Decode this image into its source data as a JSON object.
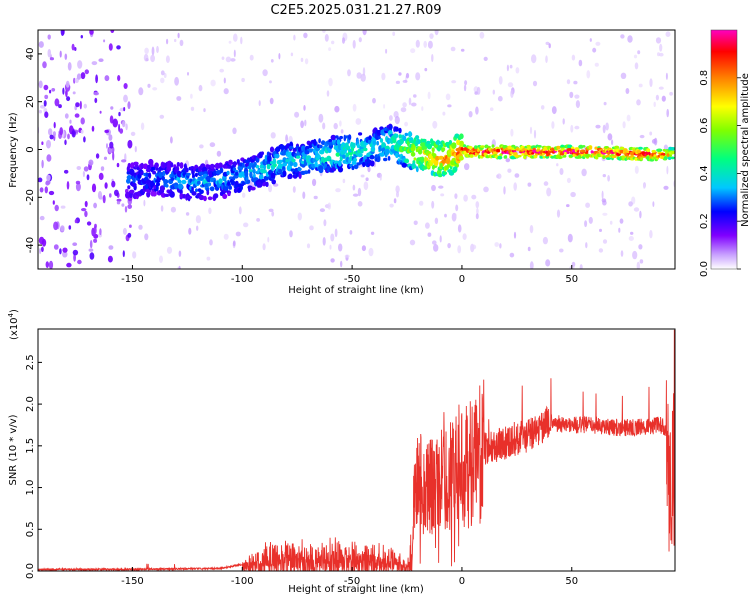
{
  "title": "C2E5.2025.031.21.27.R09",
  "chart_data": [
    {
      "type": "heatmap",
      "xlabel": "Height of straight line (km)",
      "ylabel": "Frequency (Hz)",
      "xlim": [
        -193,
        97
      ],
      "ylim": [
        -50,
        50
      ],
      "xticks": [
        -150,
        -100,
        -50,
        0,
        50
      ],
      "yticks": [
        -40,
        -20,
        0,
        20,
        40
      ],
      "colorbar": {
        "label": "Normalized spectral amplitude",
        "range": [
          0,
          1
        ],
        "ticks": [
          "0.0",
          "0.2",
          "0.4",
          "0.6",
          "0.8"
        ],
        "tick_values": [
          0.0,
          0.2,
          0.4,
          0.6,
          0.8
        ],
        "colormap": [
          "#ffffff",
          "#c8a0ff",
          "#8000ff",
          "#0000ff",
          "#00c8ff",
          "#00ff80",
          "#80ff00",
          "#ffff00",
          "#ff8000",
          "#ff0000",
          "#ff00c0"
        ]
      },
      "ridge": {
        "x": [
          -150,
          -140,
          -130,
          -120,
          -110,
          -100,
          -90,
          -80,
          -70,
          -60,
          -50,
          -40,
          -33,
          -30,
          -25,
          -20,
          -15,
          -10,
          -5,
          0,
          5,
          20,
          40,
          60,
          80,
          90,
          96
        ],
        "y": [
          -13,
          -12,
          -13,
          -14,
          -13,
          -11,
          -8,
          -5,
          -4,
          -2,
          -1,
          1,
          3,
          2,
          0,
          -2,
          -3,
          -4,
          -3,
          0,
          -1,
          -1,
          -1,
          -1,
          -2,
          -2,
          -2
        ],
        "amplitude": [
          0.3,
          0.3,
          0.35,
          0.35,
          0.35,
          0.35,
          0.4,
          0.4,
          0.4,
          0.45,
          0.45,
          0.4,
          0.45,
          0.5,
          0.6,
          0.7,
          0.8,
          0.8,
          0.85,
          0.9,
          1.0,
          1.0,
          1.0,
          1.0,
          1.0,
          0.9,
          0.7
        ]
      }
    },
    {
      "type": "line",
      "xlabel": "Height of straight line (km)",
      "ylabel": "SNR (10 * v/v)",
      "scale_label": "(x10",
      "scale_exponent": "4",
      "scale_suffix": ")",
      "xlim": [
        -193,
        97
      ],
      "ylim": [
        0,
        2.9
      ],
      "xticks": [
        -150,
        -100,
        -50,
        0,
        50
      ],
      "yticks": [
        "0.0",
        "0.5",
        "1.0",
        "1.5",
        "2.0",
        "2.5"
      ],
      "ytick_values": [
        0.0,
        0.5,
        1.0,
        1.5,
        2.0,
        2.5
      ],
      "color": "#e8302a",
      "envelope": {
        "x": [
          -193,
          -150,
          -110,
          -100,
          -90,
          -80,
          -70,
          -60,
          -50,
          -40,
          -30,
          -25,
          -22,
          -20,
          -15,
          -10,
          -5,
          0,
          5,
          10,
          20,
          30,
          35,
          40,
          50,
          60,
          70,
          80,
          90,
          93,
          95,
          96
        ],
        "y": [
          0.02,
          0.02,
          0.03,
          0.08,
          0.25,
          0.3,
          0.28,
          0.3,
          0.3,
          0.28,
          0.2,
          0.1,
          0.8,
          1.1,
          1.0,
          1.05,
          1.15,
          1.2,
          1.3,
          1.45,
          1.55,
          1.62,
          1.7,
          1.78,
          1.75,
          1.75,
          1.72,
          1.72,
          1.75,
          1.72,
          0.8,
          1.9
        ]
      }
    }
  ]
}
